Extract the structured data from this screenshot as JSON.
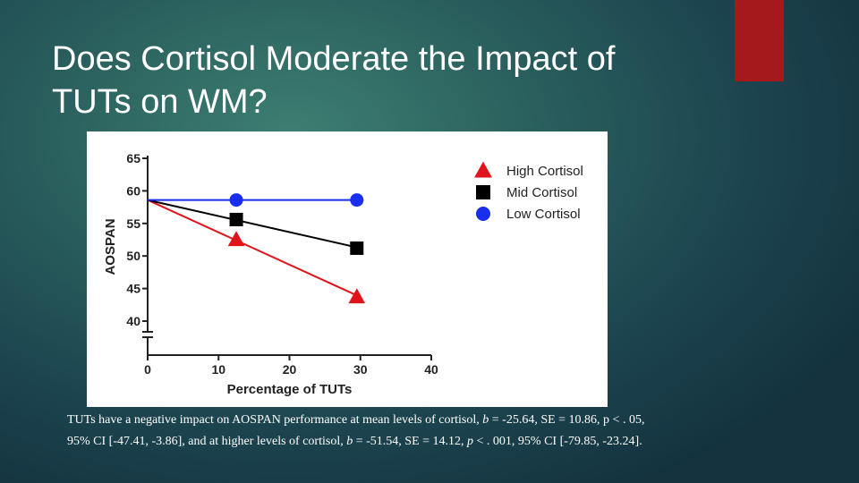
{
  "slide": {
    "title_line1": "Does Cortisol Moderate the Impact of",
    "title_line2": "TUTs on WM?",
    "accent_color": "#a5191c"
  },
  "chart_data": {
    "type": "line",
    "title": "",
    "xlabel": "Percentage of TUTs",
    "ylabel": "AOSPAN",
    "x_ticks": [
      0,
      10,
      20,
      30,
      40
    ],
    "y_ticks": [
      40,
      45,
      50,
      55,
      60,
      65
    ],
    "xlim": [
      0,
      40
    ],
    "ylim": [
      40,
      65
    ],
    "y_axis_break": true,
    "grid": false,
    "legend_position": "top-right",
    "series": [
      {
        "name": "High Cortisol",
        "color": "#e0141b",
        "marker": "triangle",
        "line": [
          [
            0,
            58.6
          ],
          [
            30,
            43.7
          ]
        ],
        "points": [
          [
            12.5,
            52.5
          ],
          [
            29.5,
            43.7
          ]
        ]
      },
      {
        "name": "Mid Cortisol",
        "color": "#000000",
        "marker": "square",
        "line": [
          [
            0,
            58.6
          ],
          [
            30,
            51.2
          ]
        ],
        "points": [
          [
            12.5,
            55.6
          ],
          [
            29.5,
            51.2
          ]
        ]
      },
      {
        "name": "Low Cortisol",
        "color": "#1a2ef0",
        "marker": "circle",
        "line": [
          [
            0,
            58.6
          ],
          [
            30,
            58.6
          ]
        ],
        "points": [
          [
            12.5,
            58.6
          ],
          [
            29.5,
            58.6
          ]
        ]
      }
    ]
  },
  "caption": {
    "l1_pre": "TUTs have a negative impact on AOSPAN performance at mean levels of cortisol, ",
    "l1_b": "b",
    "l1_post": " = -25.64, SE = 10.86, p < . 05,",
    "l2_pre": "95% CI [-47.41, -3.86], and at higher levels of cortisol, ",
    "l2_b": "b",
    "l2_mid": " = -51.54, SE = 14.12, ",
    "l2_p": "p",
    "l2_post": " < . 001, 95% CI [-79.85, -23.24]."
  }
}
